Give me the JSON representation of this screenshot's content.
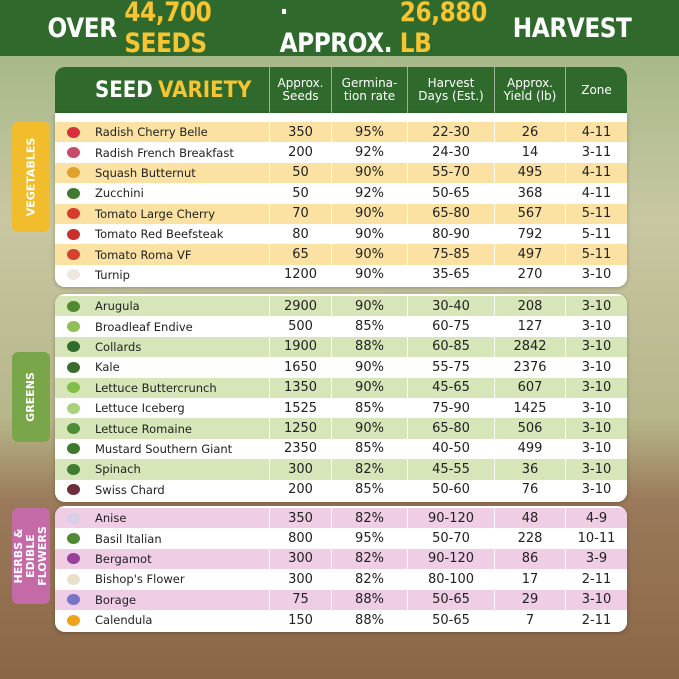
{
  "header": {
    "title": {
      "pre": "OVER",
      "seeds": "44,700 SEEDS",
      "mid": "· APPROX.",
      "harvest": "26,880 LB",
      "post": "HARVEST"
    }
  },
  "table": {
    "variety_header": [
      "SEED",
      "VARIETY"
    ],
    "columns": [
      "Approx. Seeds",
      "Germina- tion rate",
      "Harvest Days (Est.)",
      "Approx. Yield (lb)",
      "Zone"
    ],
    "groups": [
      {
        "label": "VEGETABLES",
        "rows": [
          [
            "Radish Cherry Belle",
            "350",
            "95%",
            "22-30",
            "26",
            "4-11"
          ],
          [
            "Radish French Breakfast",
            "200",
            "92%",
            "24-30",
            "14",
            "3-11"
          ],
          [
            "Squash Butternut",
            "50",
            "90%",
            "55-70",
            "495",
            "4-11"
          ],
          [
            "Zucchini",
            "50",
            "92%",
            "50-65",
            "368",
            "4-11"
          ],
          [
            "Tomato Large Cherry",
            "70",
            "90%",
            "65-80",
            "567",
            "5-11"
          ],
          [
            "Tomato Red Beefsteak",
            "80",
            "90%",
            "80-90",
            "792",
            "5-11"
          ],
          [
            "Tomato Roma VF",
            "65",
            "90%",
            "75-85",
            "497",
            "5-11"
          ],
          [
            "Turnip",
            "1200",
            "90%",
            "35-65",
            "270",
            "3-10"
          ]
        ]
      },
      {
        "label": "GREENS",
        "rows": [
          [
            "Arugula",
            "2900",
            "90%",
            "30-40",
            "208",
            "3-10"
          ],
          [
            "Broadleaf Endive",
            "500",
            "85%",
            "60-75",
            "127",
            "3-10"
          ],
          [
            "Collards",
            "1900",
            "88%",
            "60-85",
            "2842",
            "3-10"
          ],
          [
            "Kale",
            "1650",
            "90%",
            "55-75",
            "2376",
            "3-10"
          ],
          [
            "Lettuce Buttercrunch",
            "1350",
            "90%",
            "45-65",
            "607",
            "3-10"
          ],
          [
            "Lettuce Iceberg",
            "1525",
            "85%",
            "75-90",
            "1425",
            "3-10"
          ],
          [
            "Lettuce Romaine",
            "1250",
            "90%",
            "65-80",
            "506",
            "3-10"
          ],
          [
            "Mustard Southern Giant",
            "2350",
            "85%",
            "40-50",
            "499",
            "3-10"
          ],
          [
            "Spinach",
            "300",
            "82%",
            "45-55",
            "36",
            "3-10"
          ],
          [
            "Swiss Chard",
            "200",
            "85%",
            "50-60",
            "76",
            "3-10"
          ]
        ]
      },
      {
        "label": "HERBS & EDIBLE FLOWERS",
        "rows": [
          [
            "Anise",
            "350",
            "82%",
            "90-120",
            "48",
            "4-9"
          ],
          [
            "Basil Italian",
            "800",
            "95%",
            "50-70",
            "228",
            "10-11"
          ],
          [
            "Bergamot",
            "300",
            "82%",
            "90-120",
            "86",
            "3-9"
          ],
          [
            "Bishop's Flower",
            "300",
            "82%",
            "80-100",
            "17",
            "2-11"
          ],
          [
            "Borage",
            "75",
            "88%",
            "50-65",
            "29",
            "3-10"
          ],
          [
            "Calendula",
            "150",
            "88%",
            "50-65",
            "7",
            "2-11"
          ]
        ]
      }
    ]
  }
}
